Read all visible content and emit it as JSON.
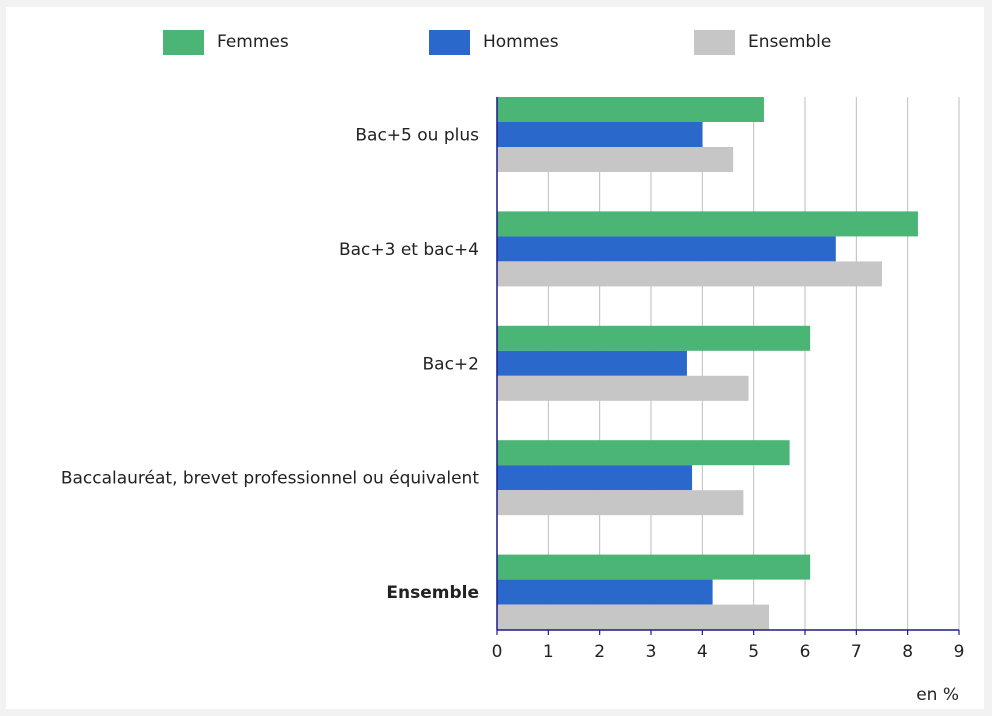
{
  "chart_data": {
    "type": "bar",
    "orientation": "horizontal",
    "categories": [
      "Bac+5 ou plus",
      "Bac+3 et bac+4",
      "Bac+2",
      "Baccalauréat, brevet professionnel ou équivalent",
      "Ensemble"
    ],
    "bold_categories": [
      "Ensemble"
    ],
    "series": [
      {
        "name": "Femmes",
        "color": "#4ab574",
        "values": [
          5.2,
          8.2,
          6.1,
          5.7,
          6.1
        ]
      },
      {
        "name": "Hommes",
        "color": "#2a68cc",
        "values": [
          4.0,
          6.6,
          3.7,
          3.8,
          4.2
        ]
      },
      {
        "name": "Ensemble",
        "color": "#c6c6c6",
        "values": [
          4.6,
          7.5,
          4.9,
          4.8,
          5.3
        ]
      }
    ],
    "xlim": [
      0,
      9
    ],
    "xticks": [
      "0",
      "1",
      "2",
      "3",
      "4",
      "5",
      "6",
      "7",
      "8",
      "9"
    ],
    "unit_label": "en %",
    "grid": true,
    "legend_position": "top"
  }
}
